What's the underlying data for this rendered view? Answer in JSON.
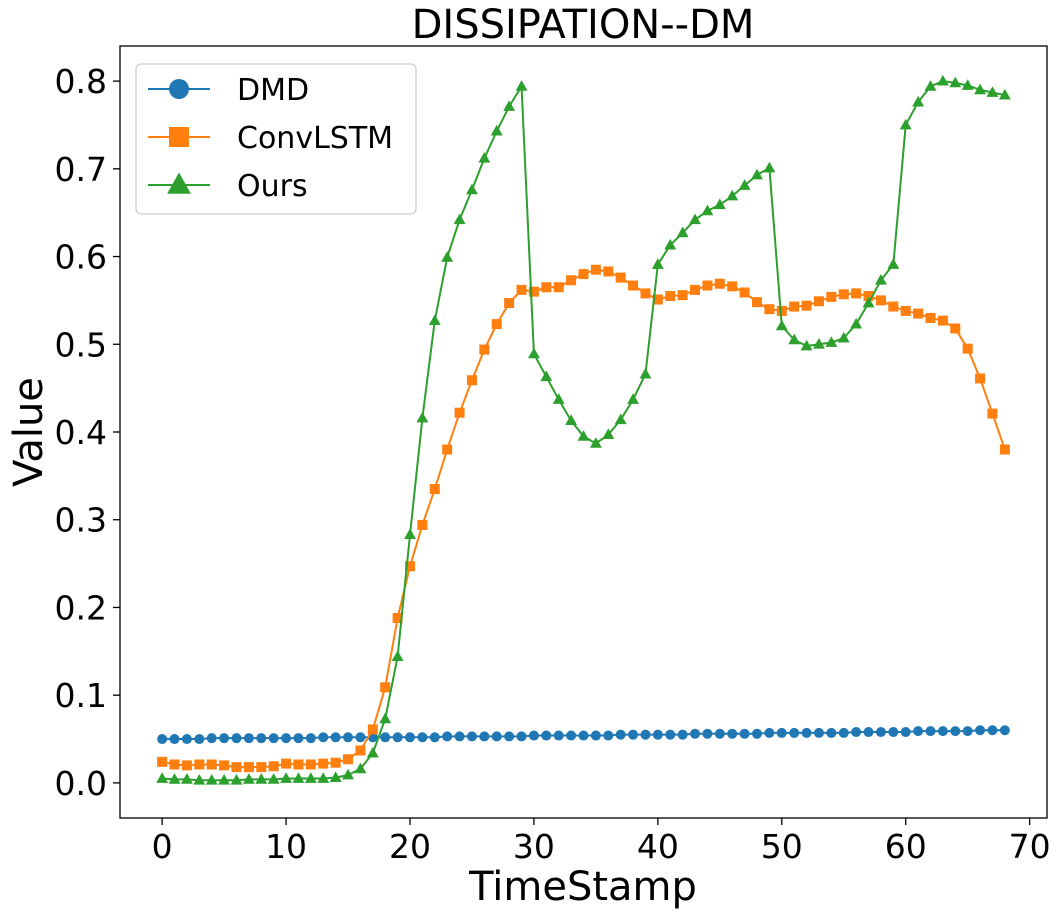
{
  "chart_data": {
    "type": "line",
    "title": "DISSIPATION--DM",
    "xlabel": "TimeStamp",
    "ylabel": "Value",
    "xlim": [
      -3.4,
      71.4
    ],
    "ylim": [
      -0.04,
      0.84
    ],
    "xticks": [
      0,
      10,
      20,
      30,
      40,
      50,
      60,
      70
    ],
    "yticks": [
      0.0,
      0.1,
      0.2,
      0.3,
      0.4,
      0.5,
      0.6,
      0.7,
      0.8
    ],
    "xtick_labels": [
      "0",
      "10",
      "20",
      "30",
      "40",
      "50",
      "60",
      "70"
    ],
    "ytick_labels": [
      "0.0",
      "0.1",
      "0.2",
      "0.3",
      "0.4",
      "0.5",
      "0.6",
      "0.7",
      "0.8"
    ],
    "grid": false,
    "legend_position": "top-left",
    "series": [
      {
        "name": "DMD",
        "color": "#1f77b4",
        "marker": "circle",
        "values": [
          0.05,
          0.05,
          0.05,
          0.05,
          0.051,
          0.051,
          0.051,
          0.051,
          0.051,
          0.051,
          0.051,
          0.051,
          0.051,
          0.052,
          0.052,
          0.052,
          0.052,
          0.052,
          0.052,
          0.052,
          0.052,
          0.052,
          0.052,
          0.053,
          0.053,
          0.053,
          0.053,
          0.053,
          0.053,
          0.053,
          0.054,
          0.054,
          0.054,
          0.054,
          0.054,
          0.054,
          0.054,
          0.055,
          0.055,
          0.055,
          0.055,
          0.055,
          0.055,
          0.056,
          0.056,
          0.056,
          0.056,
          0.056,
          0.056,
          0.057,
          0.057,
          0.057,
          0.057,
          0.057,
          0.057,
          0.057,
          0.058,
          0.058,
          0.058,
          0.058,
          0.058,
          0.059,
          0.059,
          0.059,
          0.059,
          0.059,
          0.06,
          0.06,
          0.06
        ]
      },
      {
        "name": "ConvLSTM",
        "color": "#ff7f0e",
        "marker": "square",
        "values": [
          0.024,
          0.021,
          0.02,
          0.021,
          0.021,
          0.02,
          0.018,
          0.018,
          0.018,
          0.019,
          0.022,
          0.021,
          0.021,
          0.022,
          0.023,
          0.027,
          0.037,
          0.061,
          0.109,
          0.188,
          0.247,
          0.294,
          0.335,
          0.38,
          0.422,
          0.459,
          0.494,
          0.523,
          0.547,
          0.562,
          0.56,
          0.565,
          0.565,
          0.573,
          0.58,
          0.585,
          0.583,
          0.576,
          0.567,
          0.558,
          0.551,
          0.555,
          0.556,
          0.562,
          0.567,
          0.569,
          0.566,
          0.559,
          0.548,
          0.54,
          0.538,
          0.543,
          0.544,
          0.549,
          0.554,
          0.557,
          0.558,
          0.555,
          0.55,
          0.543,
          0.538,
          0.535,
          0.53,
          0.527,
          0.518,
          0.495,
          0.461,
          0.421,
          0.38
        ]
      },
      {
        "name": "Ours",
        "color": "#2ca02c",
        "marker": "triangle",
        "values": [
          0.005,
          0.004,
          0.004,
          0.003,
          0.003,
          0.003,
          0.003,
          0.004,
          0.004,
          0.004,
          0.005,
          0.005,
          0.005,
          0.005,
          0.006,
          0.009,
          0.016,
          0.034,
          0.073,
          0.144,
          0.283,
          0.416,
          0.527,
          0.599,
          0.642,
          0.676,
          0.712,
          0.743,
          0.771,
          0.794,
          0.489,
          0.463,
          0.437,
          0.413,
          0.395,
          0.387,
          0.397,
          0.414,
          0.437,
          0.466,
          0.591,
          0.613,
          0.627,
          0.642,
          0.652,
          0.659,
          0.669,
          0.681,
          0.693,
          0.701,
          0.521,
          0.505,
          0.498,
          0.5,
          0.502,
          0.507,
          0.523,
          0.547,
          0.573,
          0.591,
          0.75,
          0.776,
          0.794,
          0.8,
          0.798,
          0.795,
          0.79,
          0.787,
          0.784
        ]
      }
    ]
  }
}
